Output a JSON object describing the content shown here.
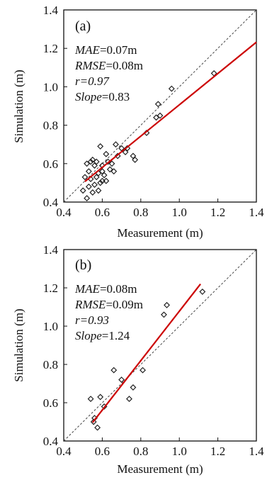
{
  "chart_data": [
    {
      "type": "scatter",
      "panel_label": "(a)",
      "xlabel": "Measurement (m)",
      "ylabel": "Simulation (m)",
      "xlim": [
        0.4,
        1.4
      ],
      "ylim": [
        0.4,
        1.4
      ],
      "xticks": [
        "0.4",
        "0.6",
        "0.8",
        "1.0",
        "1.2",
        "1.4"
      ],
      "yticks": [
        "0.4",
        "0.6",
        "0.8",
        "1.0",
        "1.2",
        "1.4"
      ],
      "stats": [
        {
          "name": "MAE",
          "rest": "=0.07m",
          "rest_italic": false
        },
        {
          "name": "RMSE",
          "rest": "=0.08m",
          "rest_italic": false
        },
        {
          "name": "r",
          "rest": "=0.97",
          "rest_italic": true
        },
        {
          "name": "Slope",
          "rest": "=0.83",
          "rest_italic": false
        }
      ],
      "points": {
        "x": [
          0.5,
          0.51,
          0.52,
          0.52,
          0.53,
          0.53,
          0.54,
          0.54,
          0.55,
          0.55,
          0.56,
          0.56,
          0.57,
          0.57,
          0.58,
          0.58,
          0.59,
          0.59,
          0.6,
          0.6,
          0.6,
          0.61,
          0.62,
          0.62,
          0.63,
          0.64,
          0.65,
          0.66,
          0.67,
          0.68,
          0.7,
          0.72,
          0.73,
          0.76,
          0.77,
          0.83,
          0.88,
          0.89,
          0.9,
          0.96,
          1.18
        ],
        "y": [
          0.46,
          0.53,
          0.42,
          0.6,
          0.48,
          0.56,
          0.52,
          0.61,
          0.45,
          0.62,
          0.49,
          0.59,
          0.53,
          0.61,
          0.46,
          0.55,
          0.5,
          0.69,
          0.51,
          0.56,
          0.59,
          0.54,
          0.51,
          0.65,
          0.61,
          0.57,
          0.6,
          0.56,
          0.7,
          0.64,
          0.68,
          0.66,
          0.68,
          0.64,
          0.62,
          0.76,
          0.84,
          0.91,
          0.85,
          0.99,
          1.07
        ]
      },
      "fit_line": {
        "x": [
          0.51,
          1.4
        ],
        "y": [
          0.507,
          1.232
        ]
      },
      "identity_line": true,
      "colors": {
        "fit": "#cc0000",
        "marker": "#222222",
        "identity": "#333333"
      }
    },
    {
      "type": "scatter",
      "panel_label": "(b)",
      "xlabel": "Measurement (m)",
      "ylabel": "Simulation (m)",
      "xlim": [
        0.4,
        1.4
      ],
      "ylim": [
        0.4,
        1.4
      ],
      "xticks": [
        "0.4",
        "0.6",
        "0.8",
        "1.0",
        "1.2",
        "1.4"
      ],
      "yticks": [
        "0.4",
        "0.6",
        "0.8",
        "1.0",
        "1.2",
        "1.4"
      ],
      "stats": [
        {
          "name": "MAE",
          "rest": "=0.08m",
          "rest_italic": false
        },
        {
          "name": "RMSE",
          "rest": "=0.09m",
          "rest_italic": false
        },
        {
          "name": "r",
          "rest": "=0.93",
          "rest_italic": true
        },
        {
          "name": "Slope",
          "rest": "=1.24",
          "rest_italic": false
        }
      ],
      "points": {
        "x": [
          0.54,
          0.555,
          0.56,
          0.575,
          0.59,
          0.61,
          0.66,
          0.7,
          0.74,
          0.76,
          0.81,
          0.92,
          0.935,
          1.12
        ],
        "y": [
          0.62,
          0.5,
          0.52,
          0.47,
          0.63,
          0.58,
          0.77,
          0.72,
          0.62,
          0.68,
          0.77,
          1.06,
          1.11,
          1.18
        ],
        "y_correction_note": ""
      },
      "fit_line": {
        "x": [
          0.55,
          1.11
        ],
        "y": [
          0.497,
          1.22
        ]
      },
      "identity_line": true,
      "colors": {
        "fit": "#cc0000",
        "marker": "#222222",
        "identity": "#333333"
      }
    }
  ]
}
